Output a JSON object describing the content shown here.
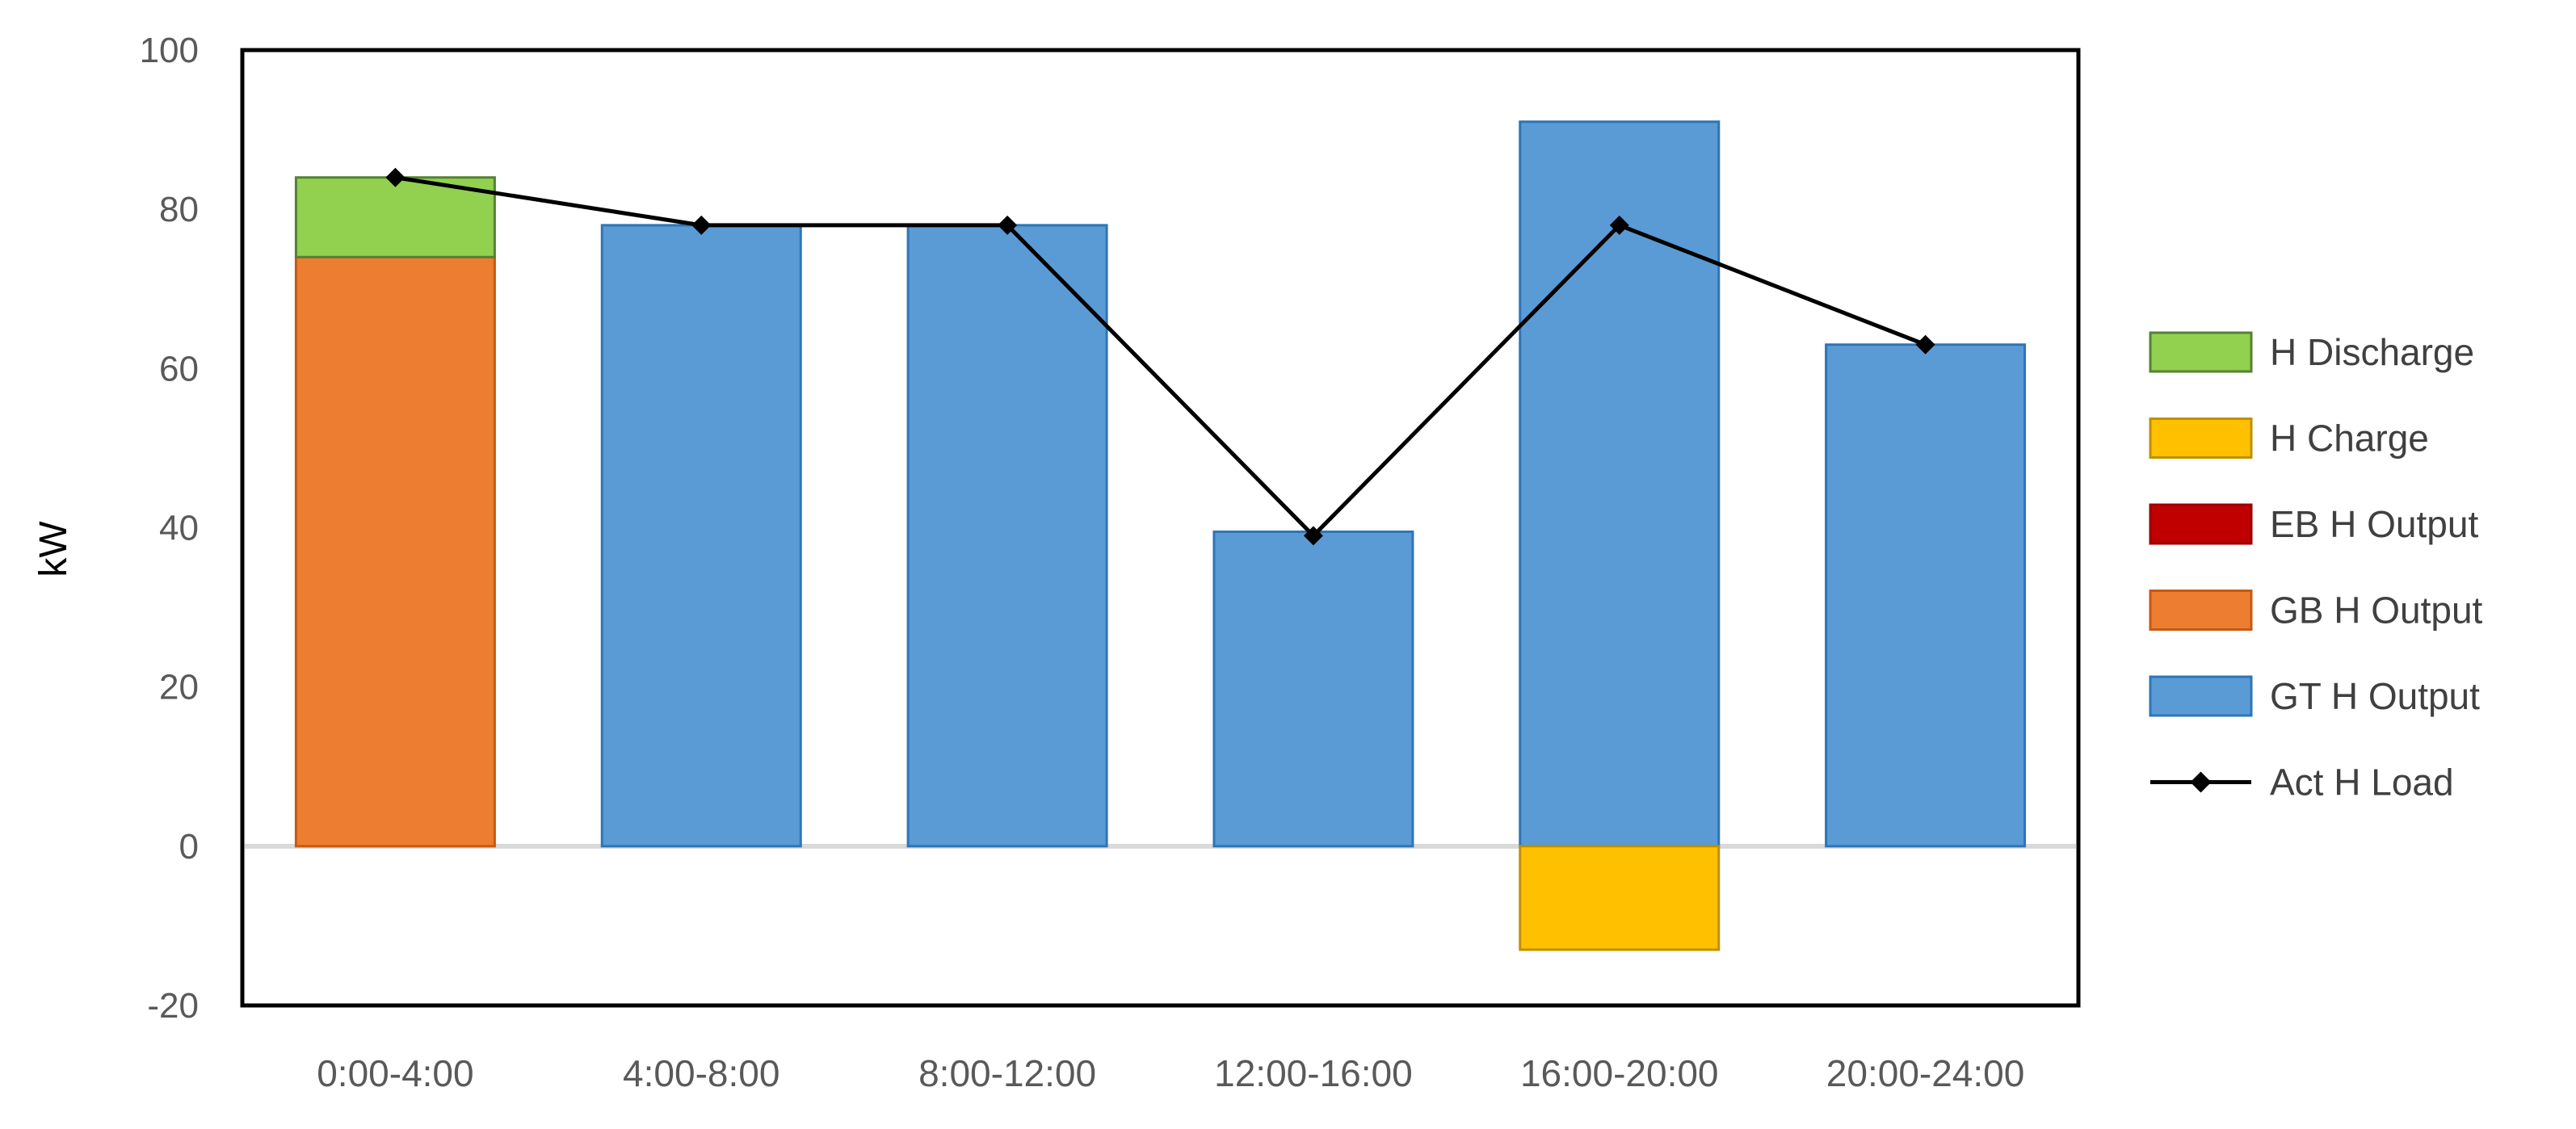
{
  "chart_data": {
    "type": "bar",
    "subtype": "stacked-bars-with-line-overlay",
    "title": "",
    "xlabel": "",
    "ylabel": "kW",
    "categories": [
      "0:00-4:00",
      "4:00-8:00",
      "8:00-12:00",
      "12:00-16:00",
      "16:00-20:00",
      "20:00-24:00"
    ],
    "series": [
      {
        "name": "H Discharge",
        "type": "bar",
        "fill": "#92D050",
        "border": "#548235",
        "values": [
          10,
          0,
          0,
          0,
          0,
          0
        ]
      },
      {
        "name": "H Charge",
        "type": "bar",
        "fill": "#FFC000",
        "border": "#BF9000",
        "values": [
          0,
          0,
          0,
          0,
          -13,
          0
        ]
      },
      {
        "name": "EB H Output",
        "type": "bar",
        "fill": "#C00000",
        "border": "#9E0000",
        "values": [
          0,
          0,
          0,
          0,
          0,
          0
        ]
      },
      {
        "name": "GB H Output",
        "type": "bar",
        "fill": "#ED7D31",
        "border": "#C55A11",
        "values": [
          74,
          0,
          0,
          0,
          0,
          0
        ]
      },
      {
        "name": "GT H Output",
        "type": "bar",
        "fill": "#5B9BD5",
        "border": "#2E75B6",
        "values": [
          0,
          78,
          78,
          39.5,
          91,
          63
        ]
      },
      {
        "name": "Act H Load",
        "type": "line",
        "color": "#000000",
        "marker": "diamond",
        "values": [
          84,
          78,
          78,
          39,
          78,
          63
        ]
      }
    ],
    "stack_order": [
      "GB H Output",
      "EB H Output",
      "GT H Output",
      "H Charge",
      "H Discharge"
    ],
    "ylim": [
      -20,
      100
    ],
    "yticks": [
      100,
      80,
      60,
      40,
      20,
      0,
      -20
    ],
    "grid": "zero-line-only",
    "legend_position": "right",
    "axis_text_color": "#595959",
    "legend_text_color": "#404040",
    "zero_line_color": "#D9D9D9",
    "plot_border_color": "#000000",
    "background_color": "#FFFFFF"
  }
}
